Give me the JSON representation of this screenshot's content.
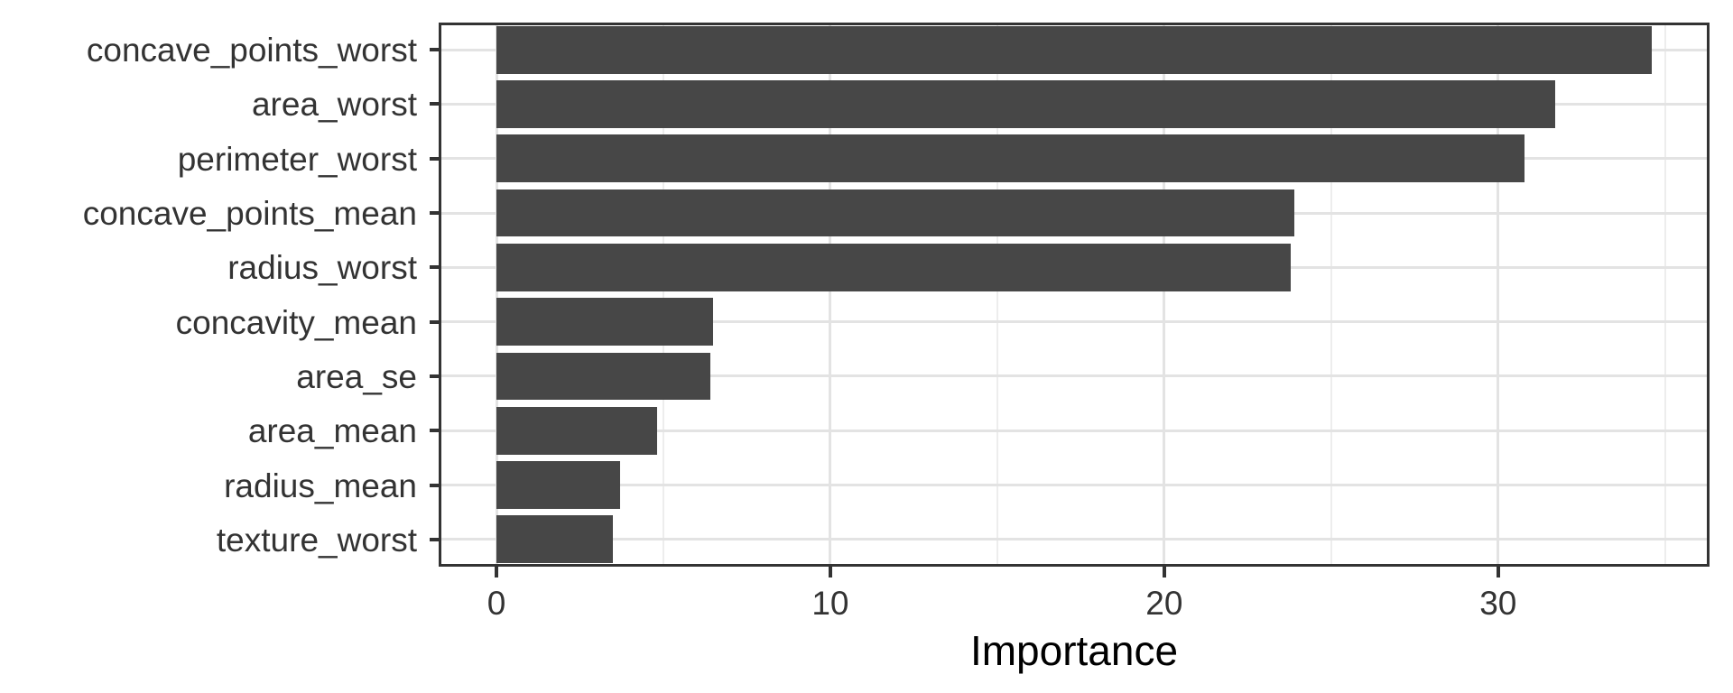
{
  "chart_data": {
    "type": "bar",
    "orientation": "horizontal",
    "title": "",
    "xlabel": "Importance",
    "ylabel": "",
    "categories": [
      "concave_points_worst",
      "area_worst",
      "perimeter_worst",
      "concave_points_mean",
      "radius_worst",
      "concavity_mean",
      "area_se",
      "area_mean",
      "radius_mean",
      "texture_worst"
    ],
    "values": [
      34.6,
      31.7,
      30.8,
      23.9,
      23.8,
      6.5,
      6.4,
      4.8,
      3.7,
      3.5
    ],
    "xlim": [
      -1.73,
      36.33
    ],
    "x_major_ticks": [
      0,
      10,
      20,
      30
    ],
    "x_major_tick_labels": [
      "0",
      "10",
      "20",
      "30"
    ],
    "x_minor_ticks": [
      5,
      15,
      25,
      35
    ],
    "grid": "on",
    "legend": "none",
    "bar_width_fraction": 0.875,
    "colors": {
      "bar_fill": "#474747",
      "panel_border": "#333333",
      "axis_tick": "#333333",
      "grid_major": "#e3e3e3",
      "grid_minor": "#ededed",
      "axis_text": "#333333",
      "axis_title": "#000000",
      "background": "#ffffff"
    }
  }
}
